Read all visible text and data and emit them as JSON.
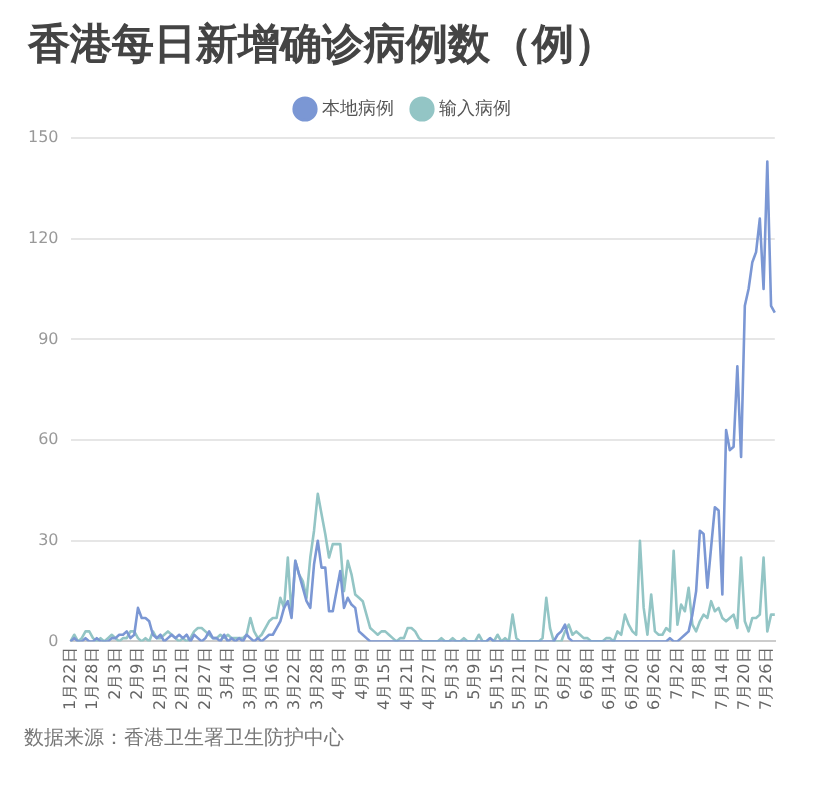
{
  "chart_data": {
    "type": "line",
    "title": "香港每日新增确诊病例数（例）",
    "annotations": [
      "数据来源：香港卫生署卫生防护中心"
    ],
    "categories": [
      "1月22日",
      null,
      null,
      null,
      null,
      null,
      "1月28日",
      null,
      null,
      null,
      null,
      null,
      "2月3日",
      null,
      null,
      null,
      null,
      null,
      "2月9日",
      null,
      null,
      null,
      null,
      null,
      "2月15日",
      null,
      null,
      null,
      null,
      null,
      "2月21日",
      null,
      null,
      null,
      null,
      null,
      "2月27日",
      null,
      null,
      null,
      null,
      null,
      "3月4日",
      null,
      null,
      null,
      null,
      null,
      "3月10日",
      null,
      null,
      null,
      null,
      null,
      "3月16日",
      null,
      null,
      null,
      null,
      null,
      "3月22日",
      null,
      null,
      null,
      null,
      null,
      "3月28日",
      null,
      null,
      null,
      null,
      null,
      "4月3日",
      null,
      null,
      null,
      null,
      null,
      "4月9日",
      null,
      null,
      null,
      null,
      null,
      "4月15日",
      null,
      null,
      null,
      null,
      null,
      "4月21日",
      null,
      null,
      null,
      null,
      null,
      "4月27日",
      null,
      null,
      null,
      null,
      null,
      "5月3日",
      null,
      null,
      null,
      null,
      null,
      "5月9日",
      null,
      null,
      null,
      null,
      null,
      "5月15日",
      null,
      null,
      null,
      null,
      null,
      "5月21日",
      null,
      null,
      null,
      null,
      null,
      "5月27日",
      null,
      null,
      null,
      null,
      null,
      "6月2日",
      null,
      null,
      null,
      null,
      null,
      "6月8日",
      null,
      null,
      null,
      null,
      null,
      "6月14日",
      null,
      null,
      null,
      null,
      null,
      "6月20日",
      null,
      null,
      null,
      null,
      null,
      "6月26日",
      null,
      null,
      null,
      null,
      null,
      "7月2日",
      null,
      null,
      null,
      null,
      null,
      "7月8日",
      null,
      null,
      null,
      null,
      null,
      "7月14日",
      null,
      null,
      null,
      null,
      null,
      "7月20日",
      null,
      null,
      null,
      null,
      null,
      "7月26日",
      null,
      null
    ],
    "series": [
      {
        "name": "本地病例",
        "color": "#7b97d4",
        "values": [
          0,
          1,
          0,
          0,
          1,
          0,
          0,
          1,
          0,
          0,
          0,
          1,
          1,
          2,
          2,
          3,
          1,
          2,
          10,
          7,
          7,
          6,
          2,
          1,
          2,
          0,
          1,
          2,
          1,
          2,
          1,
          2,
          0,
          2,
          1,
          0,
          1,
          3,
          1,
          1,
          0,
          2,
          0,
          1,
          0,
          1,
          0,
          2,
          1,
          0,
          1,
          0,
          1,
          2,
          2,
          4,
          6,
          10,
          12,
          7,
          24,
          20,
          16,
          12,
          10,
          23,
          30,
          22,
          22,
          9,
          9,
          15,
          21,
          10,
          13,
          11,
          10,
          3,
          2,
          1,
          0,
          0,
          0,
          0,
          0,
          0,
          0,
          0,
          0,
          0,
          0,
          0,
          0,
          0,
          0,
          0,
          0,
          0,
          0,
          0,
          0,
          0,
          0,
          0,
          0,
          0,
          0,
          0,
          0,
          0,
          0,
          0,
          1,
          0,
          0,
          0,
          0,
          0,
          0,
          0,
          0,
          0,
          0,
          0,
          0,
          0,
          0,
          0,
          0,
          0,
          2,
          3,
          5,
          1,
          0,
          0,
          0,
          0,
          0,
          0,
          0,
          0,
          0,
          0,
          0,
          0,
          0,
          0,
          0,
          0,
          0,
          0,
          0,
          0,
          0,
          0,
          0,
          0,
          0,
          0,
          1,
          0,
          0,
          1,
          2,
          3,
          8,
          15,
          33,
          32,
          16,
          28,
          40,
          39,
          14,
          63,
          57,
          58,
          82,
          55,
          100,
          105,
          113,
          116,
          126,
          105,
          143,
          100,
          98
        ]
      },
      {
        "name": "输入病例",
        "color": "#93c5c5",
        "values": [
          0,
          2,
          0,
          1,
          3,
          3,
          1,
          0,
          1,
          0,
          1,
          2,
          1,
          0,
          1,
          1,
          3,
          3,
          1,
          0,
          1,
          0,
          3,
          1,
          1,
          2,
          3,
          2,
          1,
          0,
          1,
          0,
          1,
          3,
          4,
          4,
          3,
          2,
          1,
          1,
          2,
          1,
          2,
          1,
          1,
          1,
          1,
          2,
          7,
          3,
          1,
          2,
          4,
          6,
          7,
          7,
          13,
          10,
          25,
          8,
          24,
          20,
          18,
          13,
          25,
          33,
          44,
          38,
          32,
          25,
          29,
          29,
          29,
          15,
          24,
          20,
          14,
          13,
          12,
          8,
          4,
          3,
          2,
          3,
          3,
          2,
          1,
          0,
          1,
          1,
          4,
          4,
          3,
          1,
          0,
          0,
          0,
          0,
          0,
          1,
          0,
          0,
          1,
          0,
          0,
          1,
          0,
          0,
          0,
          2,
          0,
          0,
          1,
          0,
          2,
          0,
          1,
          0,
          8,
          1,
          0,
          0,
          0,
          0,
          0,
          0,
          1,
          13,
          4,
          0,
          0,
          0,
          3,
          5,
          2,
          3,
          2,
          1,
          1,
          0,
          0,
          0,
          0,
          1,
          1,
          0,
          3,
          2,
          8,
          5,
          3,
          2,
          30,
          10,
          2,
          14,
          3,
          2,
          2,
          4,
          3,
          27,
          5,
          11,
          9,
          16,
          5,
          3,
          6,
          8,
          7,
          12,
          9,
          10,
          7,
          6,
          7,
          8,
          4,
          25,
          6,
          3,
          7,
          7,
          8,
          25,
          3,
          8,
          8
        ]
      }
    ],
    "ylim": [
      0,
      150
    ],
    "yticks": [
      0,
      30,
      60,
      90,
      120,
      150
    ],
    "grid": "y",
    "legend": "top",
    "marker": "none",
    "line_style": "solid"
  }
}
